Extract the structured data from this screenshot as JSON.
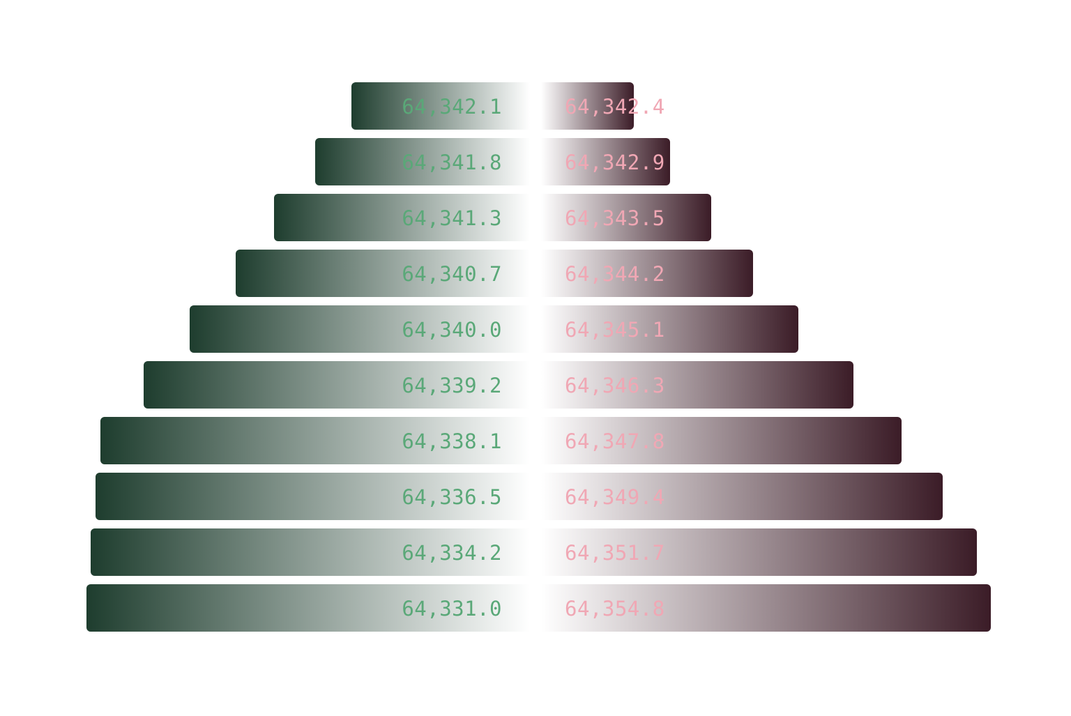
{
  "colors": {
    "bid_dark": "#1e3d2e",
    "bid_light": "#ffffff",
    "bid_text": "#5aa878",
    "ask_dark": "#3b1c27",
    "ask_light": "#ffffff",
    "ask_text": "#f0a7b4"
  },
  "chart_data": {
    "type": "bar",
    "orientation": "horizontal-diverging",
    "xlim": [
      0,
      10
    ],
    "series": [
      {
        "side": "bid",
        "labels": [
          "64,342.1",
          "64,341.8",
          "64,341.3",
          "64,340.7",
          "64,340.0",
          "64,339.2",
          "64,338.1",
          "64,336.5",
          "64,334.2",
          "64,331.0"
        ],
        "values": [
          2.64,
          3.18,
          3.78,
          4.35,
          5.03,
          5.71,
          6.35,
          6.42,
          6.49,
          6.56
        ]
      },
      {
        "side": "ask",
        "labels": [
          "64,342.4",
          "64,342.9",
          "64,343.5",
          "64,344.2",
          "64,345.1",
          "64,346.3",
          "64,347.8",
          "64,349.4",
          "64,351.7",
          "64,354.8"
        ],
        "values": [
          1.37,
          1.91,
          2.52,
          3.13,
          3.8,
          4.62,
          5.33,
          5.94,
          6.44,
          6.65
        ]
      }
    ]
  }
}
